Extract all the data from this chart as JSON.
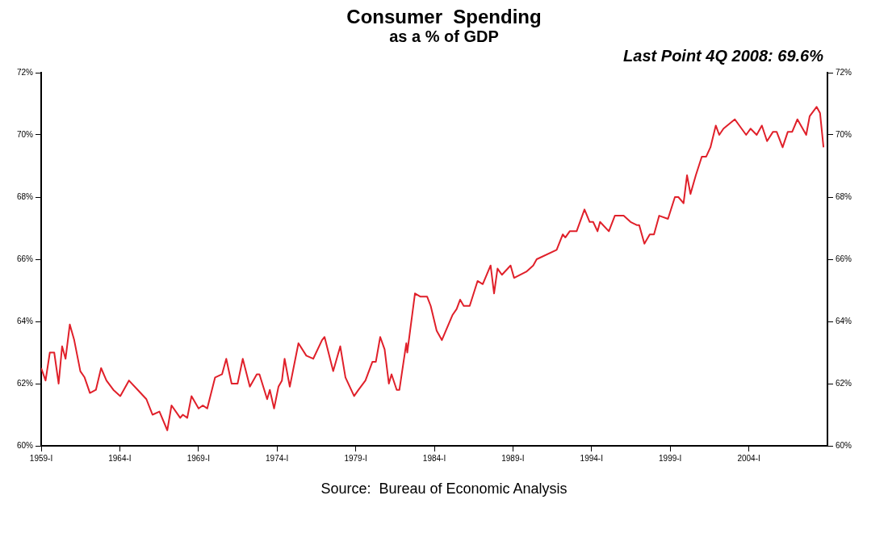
{
  "chart_data": {
    "type": "line",
    "title": "Consumer  Spending",
    "subtitle": "as a % of GDP",
    "annotations": [
      "Last Point 4Q 2008: 69.6%",
      "Source:  Bureau of Economic Analysis"
    ],
    "xlim": [
      1959,
      2009
    ],
    "xticks": [
      {
        "value": 1959,
        "label": "1959-I"
      },
      {
        "value": 1964,
        "label": "1964-I"
      },
      {
        "value": 1969,
        "label": "1969-I"
      },
      {
        "value": 1974,
        "label": "1974-I"
      },
      {
        "value": 1979,
        "label": "1979-I"
      },
      {
        "value": 1984,
        "label": "1984-I"
      },
      {
        "value": 1989,
        "label": "1989-I"
      },
      {
        "value": 1994,
        "label": "1994-I"
      },
      {
        "value": 1999,
        "label": "1999-I"
      },
      {
        "value": 2004,
        "label": "2004-I"
      }
    ],
    "ylim": [
      60,
      72
    ],
    "yticks": [
      {
        "value": 60,
        "label": "60%"
      },
      {
        "value": 62,
        "label": "62%"
      },
      {
        "value": 64,
        "label": "64%"
      },
      {
        "value": 66,
        "label": "66%"
      },
      {
        "value": 68,
        "label": "68%"
      },
      {
        "value": 70,
        "label": "70%"
      },
      {
        "value": 72,
        "label": "72%"
      }
    ],
    "y2lim": [
      60,
      72
    ],
    "y2ticks": [
      {
        "value": 60,
        "label": "60%"
      },
      {
        "value": 62,
        "label": "62%"
      },
      {
        "value": 64,
        "label": "64%"
      },
      {
        "value": 66,
        "label": "66%"
      },
      {
        "value": 68,
        "label": "68%"
      },
      {
        "value": 70,
        "label": "70%"
      },
      {
        "value": 72,
        "label": "72%"
      }
    ],
    "grid": false,
    "legend": false,
    "marker": "none",
    "line_style": "solid",
    "series": [
      {
        "color": "#e0202a",
        "x": [
          1959.0,
          1959.28,
          1959.55,
          1959.83,
          1960.11,
          1960.33,
          1960.55,
          1960.82,
          1961.1,
          1961.49,
          1961.76,
          1962.1,
          1962.48,
          1962.81,
          1963.15,
          1963.59,
          1964.03,
          1964.58,
          1965.14,
          1965.69,
          1966.08,
          1966.52,
          1967.02,
          1967.29,
          1967.84,
          1968.01,
          1968.29,
          1968.56,
          1969.01,
          1969.28,
          1969.56,
          1970.06,
          1970.5,
          1970.77,
          1971.11,
          1971.49,
          1971.82,
          1972.27,
          1972.71,
          1972.88,
          1973.37,
          1973.54,
          1973.81,
          1974.09,
          1974.31,
          1974.48,
          1974.81,
          1975.36,
          1975.86,
          1976.3,
          1976.86,
          1977.02,
          1977.57,
          1978.02,
          1978.35,
          1978.9,
          1979.18,
          1979.62,
          1980.06,
          1980.28,
          1980.56,
          1980.84,
          1981.11,
          1981.28,
          1981.61,
          1981.78,
          1982.22,
          1982.28,
          1982.77,
          1983.1,
          1983.54,
          1983.77,
          1984.15,
          1984.48,
          1985.15,
          1985.42,
          1985.64,
          1985.87,
          1986.25,
          1986.75,
          1987.08,
          1987.58,
          1987.8,
          1988.02,
          1988.3,
          1988.85,
          1989.07,
          1989.85,
          1990.29,
          1990.51,
          1991.78,
          1992.17,
          1992.33,
          1992.61,
          1993.05,
          1993.55,
          1993.88,
          1994.1,
          1994.38,
          1994.54,
          1995.1,
          1995.48,
          1995.76,
          1996.04,
          1996.48,
          1996.87,
          1997.03,
          1997.36,
          1997.7,
          1997.97,
          1998.3,
          1998.86,
          1999.3,
          1999.52,
          1999.85,
          2000.07,
          2000.29,
          2000.63,
          2001.01,
          2001.29,
          2001.56,
          2001.9,
          2002.12,
          2002.39,
          2003.11,
          2003.83,
          2004.11,
          2004.5,
          2004.83,
          2005.16,
          2005.54,
          2005.77,
          2006.15,
          2006.48,
          2006.76,
          2007.09,
          2007.65,
          2007.87,
          2008.31,
          2008.53,
          2008.75
        ],
        "values": [
          62.5,
          62.1,
          63.0,
          63.0,
          62.0,
          63.2,
          62.8,
          63.9,
          63.4,
          62.4,
          62.2,
          61.7,
          61.8,
          62.5,
          62.1,
          61.8,
          61.6,
          62.1,
          61.8,
          61.5,
          61.0,
          61.1,
          60.5,
          61.3,
          60.9,
          61.0,
          60.9,
          61.6,
          61.2,
          61.3,
          61.2,
          62.2,
          62.3,
          62.8,
          62.0,
          62.0,
          62.8,
          61.9,
          62.3,
          62.3,
          61.5,
          61.8,
          61.2,
          61.9,
          62.1,
          62.8,
          61.9,
          63.3,
          62.9,
          62.8,
          63.4,
          63.5,
          62.4,
          63.2,
          62.2,
          61.6,
          61.8,
          62.1,
          62.7,
          62.7,
          63.5,
          63.1,
          62.0,
          62.3,
          61.8,
          61.8,
          63.3,
          63.0,
          64.9,
          64.8,
          64.8,
          64.5,
          63.7,
          63.4,
          64.2,
          64.4,
          64.7,
          64.5,
          64.5,
          65.3,
          65.2,
          65.8,
          64.9,
          65.7,
          65.5,
          65.8,
          65.4,
          65.6,
          65.8,
          66.0,
          66.3,
          66.8,
          66.7,
          66.9,
          66.9,
          67.6,
          67.2,
          67.2,
          66.9,
          67.2,
          66.9,
          67.4,
          67.4,
          67.4,
          67.2,
          67.1,
          67.1,
          66.5,
          66.8,
          66.8,
          67.4,
          67.3,
          68.0,
          68.0,
          67.8,
          68.7,
          68.1,
          68.7,
          69.3,
          69.3,
          69.6,
          70.3,
          70.0,
          70.2,
          70.5,
          70.0,
          70.2,
          70.0,
          70.3,
          69.8,
          70.1,
          70.1,
          69.6,
          70.1,
          70.1,
          70.5,
          70.0,
          70.6,
          70.9,
          70.7,
          69.6
        ]
      }
    ]
  }
}
